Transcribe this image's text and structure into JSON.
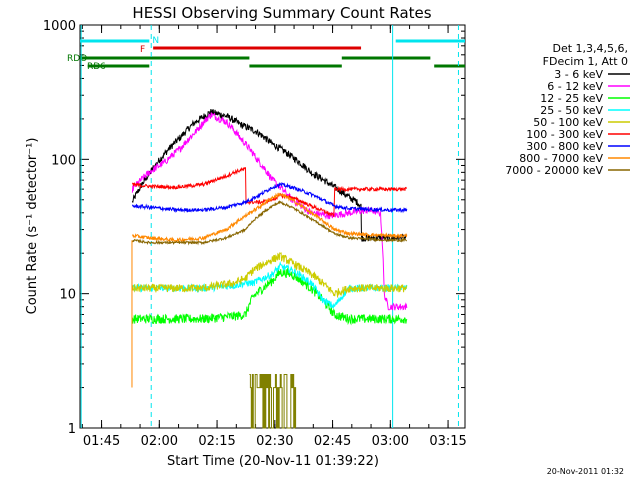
{
  "chart_data": {
    "type": "line",
    "title": "HESSI Observing Summary Count Rates",
    "xlabel": "Start Time (20-Nov-11 01:39:22)",
    "ylabel": "Count Rate (s⁻¹ detector⁻¹)",
    "x_unit": "minutes after 01:39:22 UT",
    "xlim": [
      0,
      100
    ],
    "ylim": [
      1,
      1000
    ],
    "y_scale": "log",
    "x_ticks": [
      "01:45",
      "02:00",
      "02:15",
      "02:30",
      "02:45",
      "03:00",
      "03:15"
    ],
    "x_tick_values": [
      5.6,
      20.6,
      35.6,
      50.6,
      65.6,
      80.6,
      95.6
    ],
    "y_ticks": [
      "1",
      "10",
      "100",
      "1000"
    ],
    "y_tick_values": [
      1,
      10,
      100,
      1000
    ],
    "legend_header": [
      "Det 1,3,4,5,6,",
      "FDecim 1, Att 0"
    ],
    "legend_placement": "right",
    "footer_timestamp": "20-Nov-2011 01:32",
    "flags": [
      {
        "label": "N",
        "color": "#00e5ee",
        "segments": [
          [
            0,
            18
          ],
          [
            82,
            100
          ]
        ]
      },
      {
        "label": "F",
        "color": "#dd0000",
        "segments": [
          [
            19,
            73
          ]
        ]
      },
      {
        "label": "RDO",
        "color": "#007700",
        "segments": [
          [
            0,
            44
          ],
          [
            68,
            91
          ]
        ]
      },
      {
        "label": "RD6",
        "color": "#007700",
        "segments": [
          [
            2,
            18
          ],
          [
            44,
            68
          ],
          [
            92,
            100
          ]
        ]
      }
    ],
    "vlines": [
      {
        "x": 0.3,
        "style": "solid",
        "color": "#00e5ee"
      },
      {
        "x": 18.5,
        "style": "dashed",
        "color": "#00e5ee"
      },
      {
        "x": 81.2,
        "style": "solid",
        "color": "#00e5ee"
      },
      {
        "x": 98.3,
        "style": "dashed",
        "color": "#00e5ee"
      }
    ],
    "series": [
      {
        "name": "3 - 6 keV",
        "color": "#000000",
        "noise": 0.06,
        "x": [
          13.5,
          13.6,
          18,
          22,
          26,
          30,
          34,
          38,
          42,
          46,
          50,
          55,
          60,
          65,
          70,
          72,
          73,
          73.1,
          80,
          85
        ],
        "y": [
          0,
          48,
          78,
          110,
          145,
          190,
          225,
          210,
          180,
          160,
          130,
          105,
          80,
          65,
          52,
          48,
          45,
          26,
          26,
          26
        ]
      },
      {
        "name": "6 - 12 keV",
        "color": "#ff00ff",
        "noise": 0.06,
        "x": [
          13.5,
          13.6,
          18,
          22,
          26,
          30,
          34,
          38,
          42,
          46,
          50,
          55,
          60,
          65,
          70,
          75,
          78,
          79,
          80,
          85
        ],
        "y": [
          0,
          60,
          80,
          95,
          120,
          160,
          215,
          190,
          140,
          100,
          70,
          50,
          40,
          38,
          40,
          42,
          40,
          10,
          8,
          8
        ]
      },
      {
        "name": "12 - 25 keV",
        "color": "#00ff00",
        "noise": 0.08,
        "x": [
          13.5,
          13.6,
          18,
          25,
          32,
          40,
          43,
          45,
          50,
          52,
          55,
          60,
          63,
          66,
          70,
          80,
          85
        ],
        "y": [
          0,
          6.5,
          6.5,
          6.5,
          6.5,
          6.8,
          7,
          9.5,
          12.5,
          14.5,
          14,
          11,
          9,
          7,
          6.5,
          6.5,
          6.5
        ]
      },
      {
        "name": "25 - 50 keV",
        "color": "#00ffff",
        "noise": 0.06,
        "x": [
          13.5,
          13.6,
          18,
          25,
          32,
          40,
          43,
          45,
          50,
          52,
          55,
          60,
          63,
          66,
          70,
          80,
          85
        ],
        "y": [
          0,
          11,
          11,
          11,
          11,
          11.5,
          12,
          12,
          14,
          16,
          15,
          12,
          9,
          8,
          11,
          11,
          11
        ]
      },
      {
        "name": "50 - 100 keV",
        "color": "#cccc00",
        "noise": 0.07,
        "x": [
          13.5,
          13.6,
          18,
          25,
          32,
          40,
          43,
          45,
          50,
          52,
          55,
          60,
          63,
          66,
          70,
          80,
          85
        ],
        "y": [
          0,
          11,
          11,
          11,
          11,
          12,
          13,
          15,
          18,
          19,
          17,
          14,
          12,
          10,
          11,
          11,
          11
        ]
      },
      {
        "name": "100 - 300 keV",
        "color": "#ff0000",
        "noise": 0.03,
        "x": [
          13.5,
          13.6,
          18,
          25,
          32,
          38,
          40,
          43,
          43.1,
          47,
          50,
          52,
          55,
          60,
          66,
          66.1,
          70,
          80,
          85
        ],
        "y": [
          0,
          65,
          63,
          62,
          65,
          75,
          80,
          85,
          48,
          48,
          50,
          54,
          52,
          45,
          38,
          60,
          60,
          60,
          60
        ]
      },
      {
        "name": "300 - 800 keV",
        "color": "#0000ff",
        "noise": 0.03,
        "x": [
          13.5,
          13.6,
          18,
          25,
          32,
          38,
          43,
          47,
          50,
          52,
          55,
          60,
          66,
          70,
          80,
          85
        ],
        "y": [
          0,
          45,
          44,
          42,
          42,
          44,
          48,
          55,
          62,
          65,
          62,
          55,
          45,
          43,
          42,
          42
        ]
      },
      {
        "name": "800 - 7000 keV",
        "color": "#ff8800",
        "noise": 0.03,
        "x": [
          13.5,
          13.6,
          18,
          25,
          32,
          38,
          43,
          47,
          50,
          52,
          55,
          60,
          66,
          70,
          80,
          85
        ],
        "y": [
          0,
          27,
          26,
          25,
          26,
          30,
          38,
          45,
          52,
          55,
          50,
          40,
          30,
          28,
          27,
          27
        ]
      },
      {
        "name": "7000 - 20000 keV",
        "color": "#886600",
        "noise": 0.02,
        "x": [
          13.5,
          13.6,
          18,
          25,
          32,
          38,
          43,
          45,
          50,
          52,
          55,
          60,
          66,
          70,
          80,
          85
        ],
        "y": [
          0,
          25,
          24,
          24,
          24,
          26,
          30,
          35,
          45,
          48,
          44,
          36,
          28,
          26,
          25,
          25
        ]
      }
    ],
    "spiky_series": {
      "name": "7000 - 20000 keV",
      "color": "#808000",
      "x_range": [
        44,
        56
      ],
      "levels": [
        1,
        2,
        2.5
      ]
    }
  }
}
